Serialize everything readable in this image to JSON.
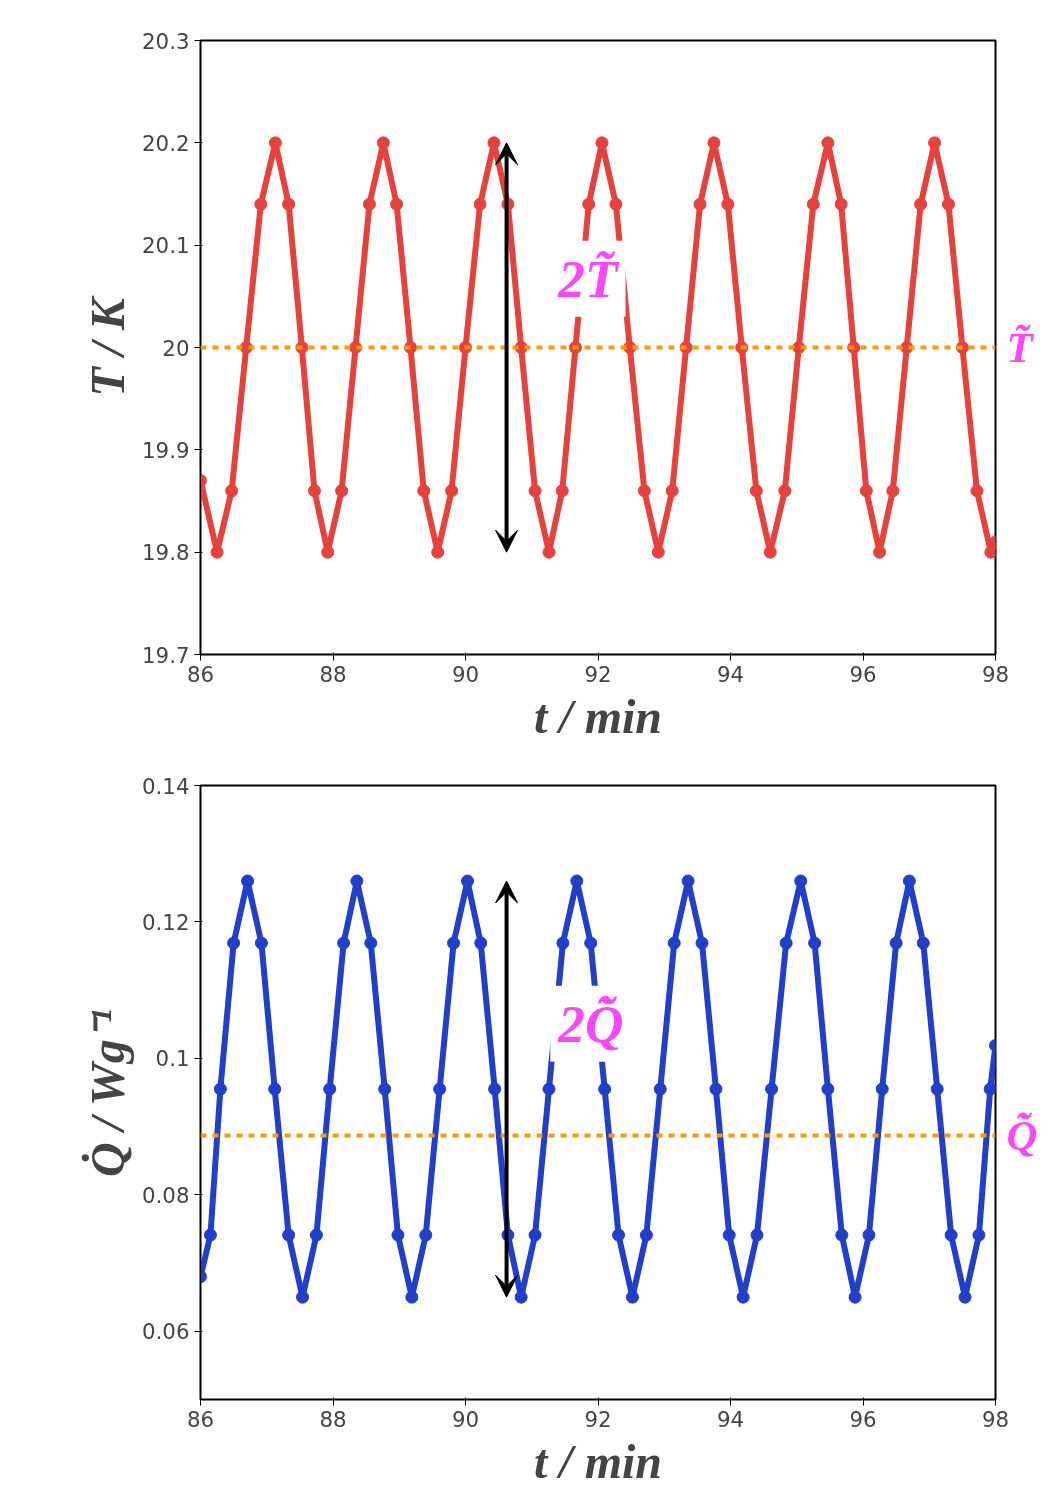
{
  "chart_data": [
    {
      "type": "line",
      "xlabel": "t / min",
      "ylabel": "T / K",
      "xlim": [
        86,
        98
      ],
      "ylim": [
        19.7,
        20.3
      ],
      "xticks": [
        86,
        88,
        90,
        92,
        94,
        96,
        98
      ],
      "yticks": [
        19.7,
        19.8,
        19.9,
        20,
        20.1,
        20.2,
        20.3
      ],
      "grid": false,
      "marker": "circle",
      "series": [
        {
          "color": "#e8413c",
          "x": [
            86.0,
            86.25,
            86.47,
            86.69,
            86.91,
            87.13,
            87.33,
            87.53,
            87.72,
            87.92,
            88.13,
            88.34,
            88.55,
            88.76,
            88.96,
            89.17,
            89.37,
            89.58,
            89.79,
            90.0,
            90.22,
            90.43,
            90.64,
            90.84,
            91.05,
            91.26,
            91.46,
            91.66,
            91.86,
            92.06,
            92.27,
            92.48,
            92.7,
            92.91,
            93.12,
            93.33,
            93.54,
            93.75,
            93.96,
            94.17,
            94.39,
            94.6,
            94.82,
            95.03,
            95.25,
            95.47,
            95.67,
            95.86,
            96.05,
            96.25,
            96.45,
            96.66,
            96.87,
            97.08,
            97.29,
            97.5,
            97.72,
            97.93,
            98.0
          ],
          "values": [
            19.87,
            19.8,
            19.86,
            20.0,
            20.14,
            20.2,
            20.14,
            20.0,
            19.86,
            19.8,
            19.86,
            20.0,
            20.14,
            20.2,
            20.14,
            20.0,
            19.86,
            19.8,
            19.86,
            20.0,
            20.14,
            20.2,
            20.14,
            20.0,
            19.86,
            19.8,
            19.86,
            20.0,
            20.14,
            20.2,
            20.14,
            20.0,
            19.86,
            19.8,
            19.86,
            20.0,
            20.14,
            20.2,
            20.14,
            20.0,
            19.86,
            19.8,
            19.86,
            20.0,
            20.14,
            20.2,
            20.14,
            20.0,
            19.86,
            19.8,
            19.86,
            20.0,
            20.14,
            20.2,
            20.14,
            20.0,
            19.86,
            19.8,
            19.81
          ]
        }
      ],
      "ref_lines": [
        {
          "axis": "y",
          "value": 20,
          "label": "T̃",
          "color": "#ff9900",
          "line_style": "dashed"
        }
      ],
      "annotations": [
        "2T̃"
      ]
    },
    {
      "type": "line",
      "xlabel": "t / min",
      "ylabel": "Q̇ / Wg⁻¹",
      "xlim": [
        86,
        98
      ],
      "ylim": [
        0.05,
        0.14
      ],
      "xticks": [
        86,
        88,
        90,
        92,
        94,
        96,
        98
      ],
      "yticks": [
        0.06,
        0.08,
        {
          "value": 0.1,
          "label": "0.1"
        },
        0.12,
        0.14
      ],
      "grid": false,
      "marker": "circle",
      "series": [
        {
          "color": "#1f3fcc",
          "x": [
            86.0,
            86.15,
            86.3,
            86.5,
            86.71,
            86.92,
            87.12,
            87.33,
            87.54,
            87.75,
            87.95,
            88.16,
            88.36,
            88.57,
            88.78,
            88.98,
            89.19,
            89.4,
            89.61,
            89.82,
            90.03,
            90.23,
            90.44,
            90.64,
            90.84,
            91.05,
            91.26,
            91.47,
            91.68,
            91.89,
            92.1,
            92.31,
            92.52,
            92.73,
            92.94,
            93.15,
            93.36,
            93.57,
            93.78,
            93.98,
            94.19,
            94.4,
            94.62,
            94.84,
            95.06,
            95.27,
            95.47,
            95.68,
            95.88,
            96.09,
            96.29,
            96.5,
            96.7,
            96.91,
            97.12,
            97.33,
            97.54,
            97.75,
            97.92,
            98.0
          ],
          "values": [
            0.068,
            0.0741,
            0.0955,
            0.1169,
            0.126,
            0.1169,
            0.0955,
            0.0741,
            0.065,
            0.0741,
            0.0955,
            0.1169,
            0.126,
            0.1169,
            0.0955,
            0.0741,
            0.065,
            0.0741,
            0.0955,
            0.1169,
            0.126,
            0.1169,
            0.0955,
            0.0741,
            0.065,
            0.0741,
            0.0955,
            0.1169,
            0.126,
            0.1169,
            0.0955,
            0.0741,
            0.065,
            0.0741,
            0.0955,
            0.1169,
            0.126,
            0.1169,
            0.0955,
            0.0741,
            0.065,
            0.0741,
            0.0955,
            0.1169,
            0.126,
            0.1169,
            0.0955,
            0.0741,
            0.065,
            0.0741,
            0.0955,
            0.1169,
            0.126,
            0.1169,
            0.0955,
            0.0741,
            0.065,
            0.0741,
            0.0955,
            0.1019
          ]
        }
      ],
      "ref_lines": [
        {
          "axis": "y",
          "value": 0.0887,
          "label": "Q̇̃",
          "color": "#ff9900",
          "line_style": "dashed"
        }
      ],
      "annotations": [
        "2Q̇̃"
      ]
    }
  ]
}
